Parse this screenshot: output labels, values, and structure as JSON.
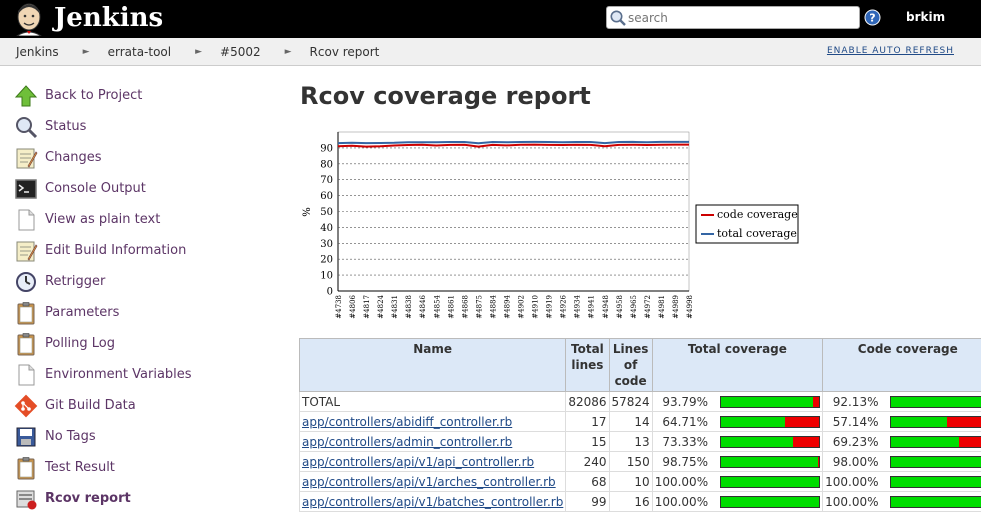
{
  "header": {
    "title": "Jenkins",
    "search_placeholder": "search",
    "user": "brkim"
  },
  "breadcrumbs": [
    "Jenkins",
    "errata-tool",
    "#5002",
    "Rcov report"
  ],
  "auto_refresh": "ENABLE AUTO REFRESH",
  "sidebar": {
    "items": [
      {
        "label": "Back to Project",
        "icon": "up-arrow-icon"
      },
      {
        "label": "Status",
        "icon": "magnifier-icon"
      },
      {
        "label": "Changes",
        "icon": "notepad-icon"
      },
      {
        "label": "Console Output",
        "icon": "terminal-icon"
      },
      {
        "label": "View as plain text",
        "icon": "document-icon"
      },
      {
        "label": "Edit Build Information",
        "icon": "notepad-icon"
      },
      {
        "label": "Retrigger",
        "icon": "clock-icon"
      },
      {
        "label": "Parameters",
        "icon": "clipboard-icon"
      },
      {
        "label": "Polling Log",
        "icon": "clipboard-icon"
      },
      {
        "label": "Environment Variables",
        "icon": "document-icon"
      },
      {
        "label": "Git Build Data",
        "icon": "git-icon"
      },
      {
        "label": "No Tags",
        "icon": "floppy-icon"
      },
      {
        "label": "Test Result",
        "icon": "clipboard-icon"
      },
      {
        "label": "Rcov report",
        "icon": "rcov-icon"
      }
    ]
  },
  "main": {
    "title": "Rcov coverage report"
  },
  "chart_data": {
    "type": "line",
    "ylabel": "%",
    "ylim": [
      0,
      100
    ],
    "yticks": [
      0,
      10,
      20,
      30,
      40,
      50,
      60,
      70,
      80,
      90
    ],
    "x": [
      "#4738",
      "#4806",
      "#4817",
      "#4824",
      "#4831",
      "#4838",
      "#4846",
      "#4854",
      "#4861",
      "#4868",
      "#4875",
      "#4884",
      "#4894",
      "#4902",
      "#4910",
      "#4919",
      "#4926",
      "#4934",
      "#4941",
      "#4948",
      "#4958",
      "#4965",
      "#4972",
      "#4981",
      "#4989",
      "#4998"
    ],
    "series": [
      {
        "name": "code coverage",
        "color": "#cc0000",
        "values": [
          91.0,
          91.3,
          90.8,
          91.0,
          91.5,
          91.8,
          92.0,
          91.5,
          91.9,
          92.0,
          90.8,
          91.9,
          91.6,
          92.0,
          92.1,
          91.9,
          91.8,
          92.0,
          91.9,
          91.0,
          91.9,
          92.0,
          91.8,
          92.0,
          92.1,
          92.1
        ]
      },
      {
        "name": "total coverage",
        "color": "#3465a4",
        "values": [
          93.0,
          93.2,
          93.0,
          93.1,
          93.2,
          93.6,
          93.6,
          93.5,
          93.7,
          93.7,
          92.9,
          93.7,
          93.5,
          93.7,
          93.8,
          93.7,
          93.6,
          93.7,
          93.7,
          93.0,
          93.7,
          93.8,
          93.6,
          93.8,
          93.8,
          93.8
        ]
      }
    ],
    "grid": true,
    "legend_position": "right"
  },
  "table": {
    "headers": [
      "Name",
      "Total lines",
      "Lines of code",
      "Total coverage",
      "Code coverage"
    ],
    "rows": [
      {
        "name": "TOTAL",
        "link": false,
        "total_lines": "82086",
        "lines_of_code": "57824",
        "total_cov": "93.79%",
        "total_frac": 0.9379,
        "code_cov": "92.13%",
        "code_frac": 0.9213
      },
      {
        "name": "app/controllers/abidiff_controller.rb",
        "link": true,
        "total_lines": "17",
        "lines_of_code": "14",
        "total_cov": "64.71%",
        "total_frac": 0.6471,
        "code_cov": "57.14%",
        "code_frac": 0.5714
      },
      {
        "name": "app/controllers/admin_controller.rb",
        "link": true,
        "total_lines": "15",
        "lines_of_code": "13",
        "total_cov": "73.33%",
        "total_frac": 0.7333,
        "code_cov": "69.23%",
        "code_frac": 0.6923
      },
      {
        "name": "app/controllers/api/v1/api_controller.rb",
        "link": true,
        "total_lines": "240",
        "lines_of_code": "150",
        "total_cov": "98.75%",
        "total_frac": 0.9875,
        "code_cov": "98.00%",
        "code_frac": 0.98
      },
      {
        "name": "app/controllers/api/v1/arches_controller.rb",
        "link": true,
        "total_lines": "68",
        "lines_of_code": "10",
        "total_cov": "100.00%",
        "total_frac": 1.0,
        "code_cov": "100.00%",
        "code_frac": 1.0
      },
      {
        "name": "app/controllers/api/v1/batches_controller.rb",
        "link": true,
        "total_lines": "99",
        "lines_of_code": "16",
        "total_cov": "100.00%",
        "total_frac": 1.0,
        "code_cov": "100.00%",
        "code_frac": 1.0
      }
    ]
  }
}
